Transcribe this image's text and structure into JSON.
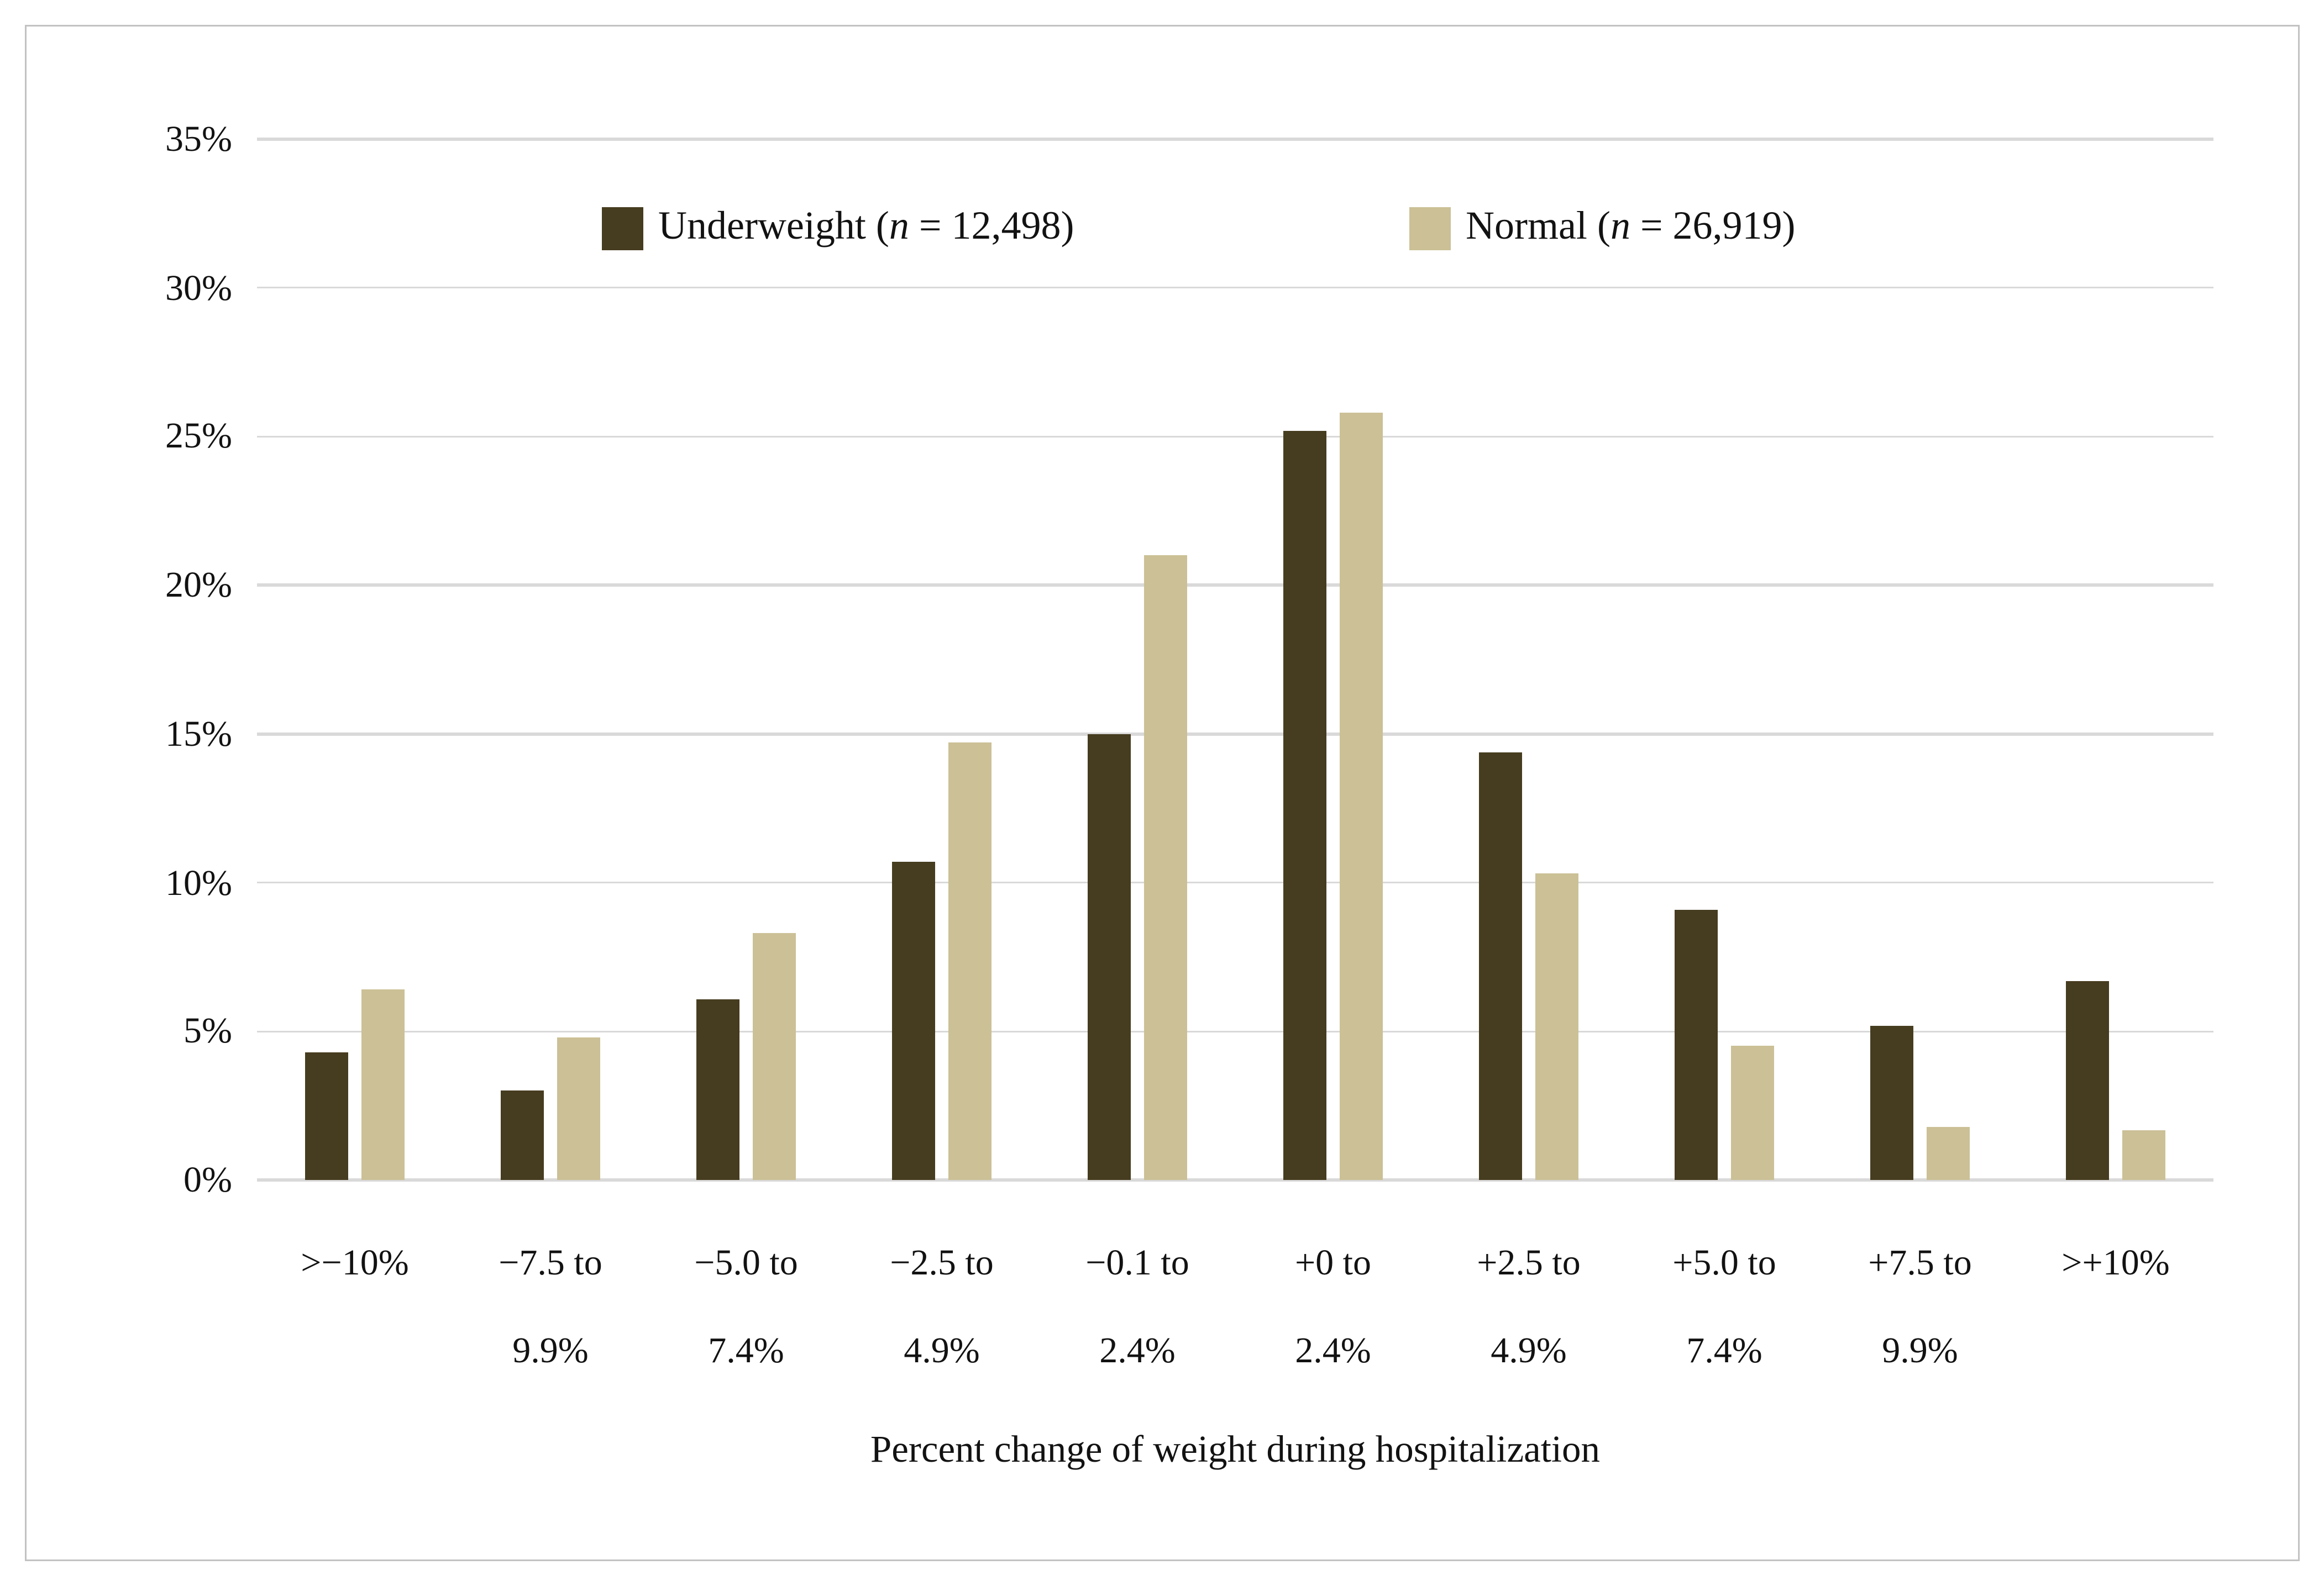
{
  "figure": {
    "background": "#ffffff",
    "border_color": "#c2c2c2"
  },
  "chart_data": {
    "type": "bar",
    "title": "",
    "xlabel": "Percent change of weight during hospitalization",
    "ylabel": "",
    "ylim": [
      0,
      35
    ],
    "y_tick_step": 5,
    "y_ticks": [
      "0%",
      "5%",
      "10%",
      "15%",
      "20%",
      "25%",
      "30%",
      "35%"
    ],
    "grid": true,
    "gridline_color": "#d9d9d9",
    "legend_position": "top-center",
    "categories": [
      ">−10%",
      "−7.5 to 9.9%",
      "−5.0 to 7.4%",
      "−2.5 to 4.9%",
      "−0.1 to 2.4%",
      "+0 to 2.4%",
      "+2.5 to 4.9%",
      "+5.0 to 7.4%",
      "+7.5 to 9.9%",
      ">+10%"
    ],
    "categories_line1": [
      ">−10%",
      "−7.5 to",
      "−5.0 to",
      "−2.5 to",
      "−0.1 to",
      "+0 to",
      "+2.5 to",
      "+5.0 to",
      "+7.5 to",
      ">+10%"
    ],
    "categories_line2": [
      "",
      "9.9%",
      "7.4%",
      "4.9%",
      "2.4%",
      "2.4%",
      "4.9%",
      "7.4%",
      "9.9%",
      ""
    ],
    "series": [
      {
        "name": "Underweight",
        "n": "12,498",
        "legend_label": "Underweight (n = 12,498)",
        "legend_pre": "Underweight (",
        "legend_var": "n",
        "legend_post": " = 12,498)",
        "color": "#463C1F",
        "values": [
          4.3,
          3.0,
          6.1,
          10.7,
          15.0,
          25.2,
          14.4,
          9.1,
          5.2,
          6.7
        ]
      },
      {
        "name": "Normal",
        "n": "26,919",
        "legend_label": "Normal (n = 26,919)",
        "legend_pre": "Normal (",
        "legend_var": "n",
        "legend_post": " = 26,919)",
        "color": "#CBC096",
        "values": [
          6.4,
          4.8,
          8.3,
          14.7,
          21.0,
          25.8,
          10.3,
          4.5,
          1.8,
          1.7
        ]
      }
    ]
  }
}
